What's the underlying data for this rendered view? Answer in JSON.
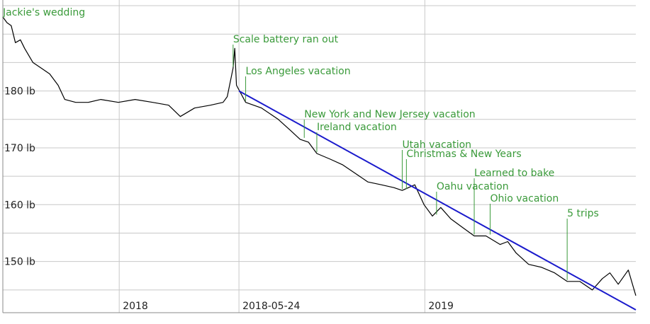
{
  "chart_data": {
    "type": "line",
    "title": "",
    "xlabel": "",
    "ylabel": "",
    "x_range": [
      "2017-08-15",
      "2019-09-10"
    ],
    "ylim": [
      141,
      196
    ],
    "grid": true,
    "y_ticks": [
      {
        "value": 180,
        "label": "180 lb"
      },
      {
        "value": 170,
        "label": "170 lb"
      },
      {
        "value": 160,
        "label": "160 lb"
      },
      {
        "value": 150,
        "label": "150 lb"
      }
    ],
    "x_ticks": [
      {
        "date": "2018-01-01",
        "label": "2018"
      },
      {
        "date": "2018-05-24",
        "label": "2018-05-24"
      },
      {
        "date": "2019-01-01",
        "label": "2019"
      }
    ],
    "series": [
      {
        "color": "#000000",
        "points": [
          [
            "2017-08-15",
            193.0
          ],
          [
            "2017-08-20",
            192.0
          ],
          [
            "2017-08-25",
            191.5
          ],
          [
            "2017-08-30",
            188.5
          ],
          [
            "2017-09-05",
            189.0
          ],
          [
            "2017-09-10",
            187.5
          ],
          [
            "2017-09-20",
            185.0
          ],
          [
            "2017-09-30",
            184.0
          ],
          [
            "2017-10-10",
            183.0
          ],
          [
            "2017-10-20",
            181.0
          ],
          [
            "2017-10-28",
            178.5
          ],
          [
            "2017-11-10",
            178.0
          ],
          [
            "2017-11-25",
            178.0
          ],
          [
            "2017-12-10",
            178.5
          ],
          [
            "2017-12-31",
            178.0
          ],
          [
            "2018-01-20",
            178.5
          ],
          [
            "2018-02-10",
            178.0
          ],
          [
            "2018-03-01",
            177.5
          ],
          [
            "2018-03-15",
            175.5
          ],
          [
            "2018-04-01",
            177.0
          ],
          [
            "2018-04-20",
            177.5
          ],
          [
            "2018-05-05",
            178.0
          ],
          [
            "2018-05-10",
            179.0
          ],
          [
            "2018-05-17",
            184.0
          ],
          [
            "2018-05-19",
            187.5
          ],
          [
            "2018-05-21",
            181.0
          ],
          [
            "2018-06-01",
            178.0
          ],
          [
            "2018-06-20",
            177.0
          ],
          [
            "2018-07-10",
            175.0
          ],
          [
            "2018-07-25",
            173.0
          ],
          [
            "2018-08-05",
            171.5
          ],
          [
            "2018-08-15",
            171.0
          ],
          [
            "2018-08-25",
            169.0
          ],
          [
            "2018-09-10",
            168.0
          ],
          [
            "2018-09-25",
            167.0
          ],
          [
            "2018-10-10",
            165.5
          ],
          [
            "2018-10-25",
            164.0
          ],
          [
            "2018-11-10",
            163.5
          ],
          [
            "2018-11-25",
            163.0
          ],
          [
            "2018-12-05",
            162.5
          ],
          [
            "2018-12-20",
            163.5
          ],
          [
            "2018-12-31",
            160.0
          ],
          [
            "2019-01-10",
            158.0
          ],
          [
            "2019-01-20",
            159.5
          ],
          [
            "2019-02-01",
            157.5
          ],
          [
            "2019-02-15",
            156.0
          ],
          [
            "2019-03-01",
            154.5
          ],
          [
            "2019-03-15",
            154.5
          ],
          [
            "2019-04-01",
            153.0
          ],
          [
            "2019-04-10",
            153.5
          ],
          [
            "2019-04-20",
            151.5
          ],
          [
            "2019-05-05",
            149.5
          ],
          [
            "2019-05-20",
            149.0
          ],
          [
            "2019-06-05",
            148.0
          ],
          [
            "2019-06-20",
            146.5
          ],
          [
            "2019-07-05",
            146.5
          ],
          [
            "2019-07-20",
            145.0
          ],
          [
            "2019-08-01",
            147.0
          ],
          [
            "2019-08-10",
            148.0
          ],
          [
            "2019-08-20",
            146.0
          ],
          [
            "2019-09-01",
            148.5
          ],
          [
            "2019-09-10",
            144.0
          ]
        ]
      },
      {
        "color": "#1a1acc",
        "points": [
          [
            "2018-05-24",
            180.0
          ],
          [
            "2019-09-10",
            141.5
          ]
        ]
      }
    ],
    "annotations": [
      {
        "text": "Jackie's wedding",
        "date": "2017-08-15"
      },
      {
        "text": "Scale battery ran out",
        "date": "2018-05-17"
      },
      {
        "text": "Los Angeles vacation",
        "date": "2018-06-01"
      },
      {
        "text": "New York and New Jersey vacation",
        "date": "2018-08-10"
      },
      {
        "text": "Ireland vacation",
        "date": "2018-08-25"
      },
      {
        "text": "Utah vacation",
        "date": "2018-12-05"
      },
      {
        "text": "Christmas & New Years",
        "date": "2018-12-10"
      },
      {
        "text": "Learned to bake",
        "date": "2019-03-01"
      },
      {
        "text": "Oahu vacation",
        "date": "2019-01-15"
      },
      {
        "text": "Ohio vacation",
        "date": "2019-03-20"
      },
      {
        "text": "5 trips",
        "date": "2019-06-20"
      }
    ],
    "colors": {
      "annotation": "#3a9a3a",
      "trend": "#1a1acc",
      "grid": "#c8c8c8",
      "axis": "#888888"
    }
  }
}
